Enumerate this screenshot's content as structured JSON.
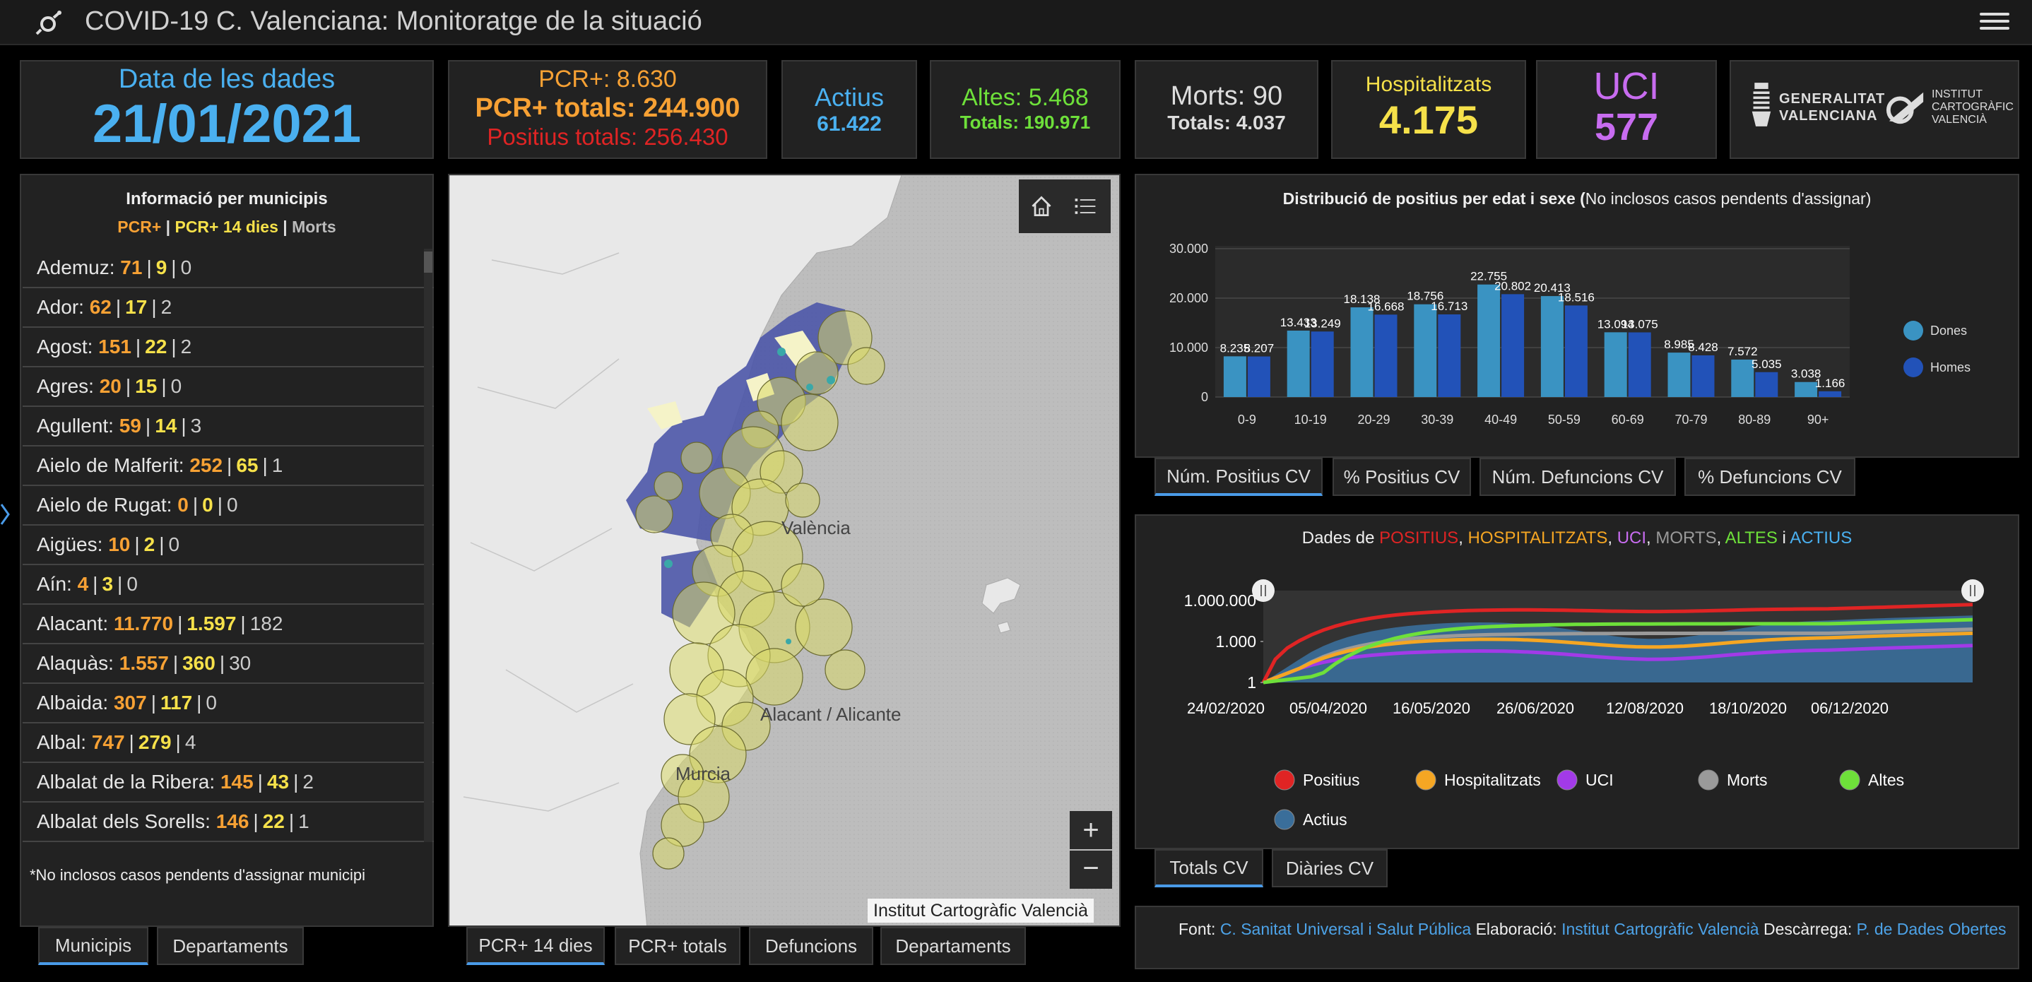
{
  "header": {
    "title": "COVID-19 C. Valenciana: Monitoratge de la situació"
  },
  "date_card": {
    "label": "Data de les dades",
    "value": "21/01/2021"
  },
  "pcr_card": {
    "line1": "PCR+: 8.630",
    "line2": "PCR+ totals: 244.900",
    "line3": "Positius totals: 256.430"
  },
  "actius_card": {
    "label": "Actius",
    "value": "61.422"
  },
  "altes_card": {
    "line1": "Altes: 5.468",
    "line2": "Totals: 190.971"
  },
  "morts_card": {
    "line1": "Morts: 90",
    "line2": "Totals: 4.037"
  },
  "hosp_card": {
    "label": "Hospitalitzats",
    "value": "4.175"
  },
  "uci_card": {
    "label": "UCI",
    "value": "577"
  },
  "logos": {
    "gv_line1": "GENERALITAT",
    "gv_line2": "VALENCIANA",
    "icv_line1": "INSTITUT",
    "icv_line2": "CARTOGRÀFIC",
    "icv_line3": "VALENCIÀ"
  },
  "municipis": {
    "title": "Informació per municipis",
    "legend_pcr": "PCR+",
    "legend_sep1": " | ",
    "legend_pcr14": "PCR+ 14 dies",
    "legend_sep2": " | ",
    "legend_morts": "Morts",
    "rows": [
      {
        "name": "Ademuz:",
        "pcr": "71",
        "pcr14": "9",
        "morts": "0"
      },
      {
        "name": "Ador:",
        "pcr": "62",
        "pcr14": "17",
        "morts": "2"
      },
      {
        "name": "Agost:",
        "pcr": "151",
        "pcr14": "22",
        "morts": "2"
      },
      {
        "name": "Agres:",
        "pcr": "20",
        "pcr14": "15",
        "morts": "0"
      },
      {
        "name": "Agullent:",
        "pcr": "59",
        "pcr14": "14",
        "morts": "3"
      },
      {
        "name": "Aielo de Malferit:",
        "pcr": "252",
        "pcr14": "65",
        "morts": "1"
      },
      {
        "name": "Aielo de Rugat:",
        "pcr": "0",
        "pcr14": "0",
        "morts": "0"
      },
      {
        "name": "Aigües:",
        "pcr": "10",
        "pcr14": "2",
        "morts": "0"
      },
      {
        "name": "Aín:",
        "pcr": "4",
        "pcr14": "3",
        "morts": "0"
      },
      {
        "name": "Alacant:",
        "pcr": "11.770",
        "pcr14": "1.597",
        "morts": "182"
      },
      {
        "name": "Alaquàs:",
        "pcr": "1.557",
        "pcr14": "360",
        "morts": "30"
      },
      {
        "name": "Albaida:",
        "pcr": "307",
        "pcr14": "117",
        "morts": "0"
      },
      {
        "name": "Albal:",
        "pcr": "747",
        "pcr14": "279",
        "morts": "4"
      },
      {
        "name": "Albalat de la Ribera:",
        "pcr": "145",
        "pcr14": "43",
        "morts": "2"
      },
      {
        "name": "Albalat dels Sorells:",
        "pcr": "146",
        "pcr14": "22",
        "morts": "1"
      }
    ],
    "footnote": "*No inclosos casos pendents d'assignar municipi",
    "tabs": [
      "Municipis",
      "Departaments"
    ]
  },
  "map": {
    "labels": {
      "valencia": "València",
      "alacant": "Alacant / Alicante",
      "murcia": "Murcia"
    },
    "attribution": "Institut Cartogràfic Valencià",
    "zoom_in": "+",
    "zoom_out": "−",
    "tabs": [
      "PCR+ 14 dies",
      "PCR+ totals",
      "Defuncions",
      "Departaments"
    ]
  },
  "age_chart": {
    "title_bold": "Distribució de positius per edat i sexe (",
    "title_normal": "No inclosos casos pendents d'assignar)",
    "tabs": [
      "Núm. Positius CV",
      "% Positius CV",
      "Núm. Defuncions CV",
      "% Defuncions CV"
    ]
  },
  "time_chart": {
    "title_prefix": "Dades de ",
    "t_positius": "POSITIUS",
    "t_comma1": ", ",
    "t_hosp": "HOSPITALITZATS",
    "t_comma2": ", ",
    "t_uci": "UCI",
    "t_comma3": ", ",
    "t_morts": "MORTS",
    "t_comma4": ", ",
    "t_altes": "ALTES",
    "t_i": " i ",
    "t_actius": "ACTIUS",
    "tabs": [
      "Totals CV",
      "Diàries CV"
    ]
  },
  "footer": {
    "font_label": "Font: ",
    "font_link": "C. Sanitat Universal i Salut Pública",
    "elab_label": " Elaboració: ",
    "elab_link": "Institut Cartogràfic Valencià",
    "desc_label": " Descàrrega: ",
    "desc_link": "P. de Dades Obertes"
  },
  "colors": {
    "dones": "#3a93c2",
    "homes": "#2252b8",
    "positius": "#e02424",
    "hospitalitzats": "#f5a623",
    "uci": "#a23ae8",
    "morts": "#9a9a9a",
    "altes": "#6ee03a",
    "actius": "#3a6e9a"
  },
  "chart_data": [
    {
      "type": "bar",
      "title": "Distribució de positius per edat i sexe (No inclosos casos pendents d'assignar)",
      "categories": [
        "0-9",
        "10-19",
        "20-29",
        "30-39",
        "40-49",
        "50-59",
        "60-69",
        "70-79",
        "80-89",
        "90+"
      ],
      "series": [
        {
          "name": "Dones",
          "values": [
            8235,
            13433,
            18138,
            18756,
            22755,
            20413,
            13094,
            8985,
            7572,
            3038
          ],
          "labels": [
            "8.235",
            "13.433",
            "18.138",
            "18.756",
            "22.755",
            "20.413",
            "13.094",
            "8.985",
            "7.572",
            "3.038"
          ]
        },
        {
          "name": "Homes",
          "values": [
            8207,
            13249,
            16668,
            16713,
            20802,
            18516,
            13075,
            8428,
            5035,
            1166
          ],
          "labels": [
            "8.207",
            "13.249",
            "16.668",
            "16.713",
            "20.802",
            "18.516",
            "13.075",
            "8.428",
            "5.035",
            "1.166"
          ]
        }
      ],
      "yticks": [
        "0",
        "10.000",
        "20.000",
        "30.000"
      ],
      "ylim": [
        0,
        30000
      ],
      "legend_position": "right"
    },
    {
      "type": "line",
      "title": "Dades de POSITIUS, HOSPITALITZATS, UCI, MORTS, ALTES i ACTIUS",
      "yscale": "log",
      "ytick_labels": [
        "1",
        "1.000",
        "1.000.000"
      ],
      "xtick_labels": [
        "24/02/2020",
        "05/04/2020",
        "16/05/2020",
        "26/06/2020",
        "12/08/2020",
        "18/10/2020",
        "06/12/2020"
      ],
      "series": [
        {
          "name": "Positius"
        },
        {
          "name": "Hospitalitzats"
        },
        {
          "name": "UCI"
        },
        {
          "name": "Morts"
        },
        {
          "name": "Altes"
        },
        {
          "name": "Actius"
        }
      ],
      "legend_position": "bottom"
    }
  ]
}
